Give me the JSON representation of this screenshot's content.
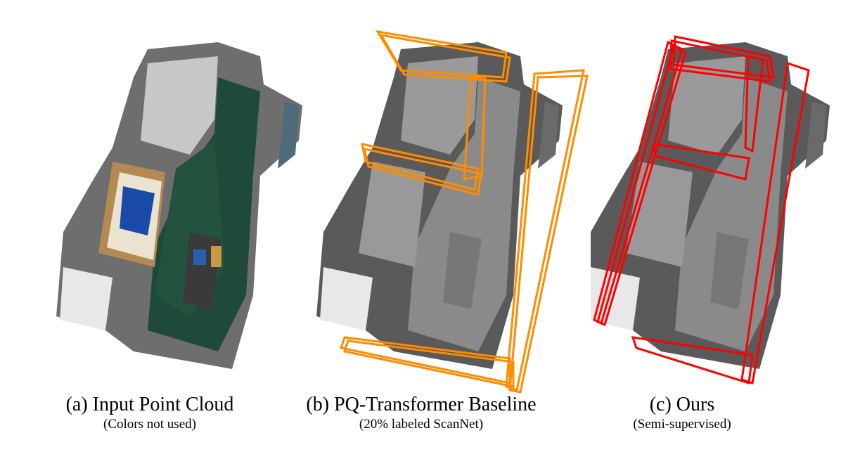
{
  "panels": [
    {
      "title": "(a) Input Point Cloud",
      "subtitle": "(Colors not used)"
    },
    {
      "title": "(b) PQ-Transformer Baseline",
      "subtitle": "(20% labeled ScanNet)"
    },
    {
      "title": "(c) Ours",
      "subtitle": "(Semi-supervised)"
    }
  ],
  "colors": {
    "baseline_boxes": "#ff8c00",
    "ours_boxes": "#ff0000",
    "mesh_gray": "#8a8a8a",
    "carpet_green": "#1f4a3a"
  }
}
